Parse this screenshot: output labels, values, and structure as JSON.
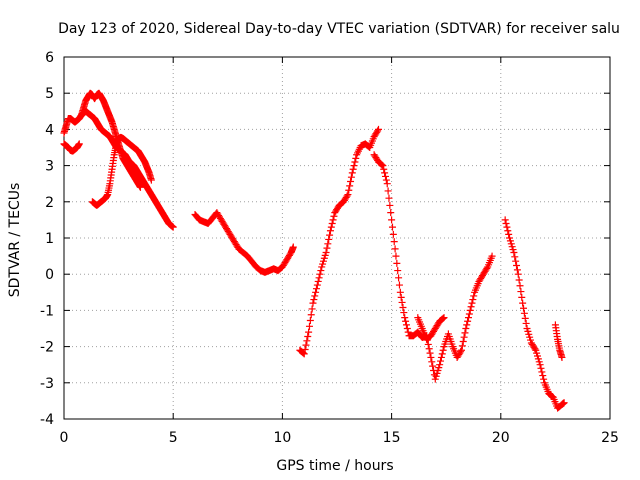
{
  "chart_data": {
    "type": "scatter",
    "title": "Day 123 of 2020, Sidereal Day-to-day VTEC variation (SDTVAR) for receiver salu",
    "xlabel": "GPS time / hours",
    "ylabel": "SDTVAR / TECUs",
    "xlim": [
      0,
      25
    ],
    "ylim": [
      -4,
      6
    ],
    "x_ticks": [
      0,
      5,
      10,
      15,
      20,
      25
    ],
    "y_ticks": [
      -4,
      -3,
      -2,
      -1,
      0,
      1,
      2,
      3,
      4,
      5,
      6
    ],
    "x_tick_labels": [
      "0",
      "5",
      "10",
      "15",
      "20",
      "25"
    ],
    "y_tick_labels": [
      "-4",
      "-3",
      "-2",
      "-1",
      "0",
      "1",
      "2",
      "3",
      "4",
      "5",
      "6"
    ],
    "grid": true,
    "marker": "+",
    "marker_color": "#ff0000",
    "series": [
      {
        "name": "trace-1",
        "x": [
          0.0,
          0.1,
          0.2,
          0.3,
          0.4,
          0.5,
          0.6,
          0.7
        ],
        "y": [
          3.6,
          3.55,
          3.5,
          3.42,
          3.4,
          3.45,
          3.5,
          3.6
        ]
      },
      {
        "name": "trace-2",
        "x": [
          0.0,
          0.1,
          0.2,
          0.3,
          0.4,
          0.5,
          0.6,
          0.7,
          0.8,
          0.9,
          1.0,
          1.1,
          1.2,
          1.3,
          1.4,
          1.5,
          1.6,
          1.7,
          1.8,
          1.9,
          2.0,
          2.1,
          2.2,
          2.3,
          2.4,
          2.5,
          2.6,
          2.7,
          2.8,
          2.9,
          3.0,
          3.1,
          3.2,
          3.3,
          3.4,
          3.5
        ],
        "y": [
          3.9,
          4.1,
          4.3,
          4.3,
          4.25,
          4.2,
          4.25,
          4.3,
          4.4,
          4.6,
          4.8,
          4.9,
          5.0,
          4.95,
          4.85,
          4.95,
          5.0,
          4.9,
          4.8,
          4.65,
          4.5,
          4.35,
          4.2,
          4.0,
          3.8,
          3.6,
          3.4,
          3.2,
          3.1,
          3.0,
          2.9,
          2.8,
          2.7,
          2.6,
          2.5,
          2.4
        ]
      },
      {
        "name": "trace-3",
        "x": [
          0.8,
          0.9,
          1.0,
          1.1,
          1.2,
          1.3,
          1.4,
          1.5,
          1.6,
          1.7,
          1.8,
          1.9,
          2.0,
          2.1,
          2.2,
          2.3,
          2.4,
          2.5,
          2.6,
          2.7,
          2.8,
          2.9,
          3.0,
          3.1,
          3.2,
          3.3,
          3.4,
          3.5,
          3.6,
          3.7,
          3.8,
          3.9,
          4.0,
          4.1,
          4.2,
          4.3,
          4.4,
          4.5,
          4.6,
          4.7,
          4.8,
          4.9,
          5.0
        ],
        "y": [
          4.4,
          4.45,
          4.5,
          4.45,
          4.4,
          4.35,
          4.3,
          4.2,
          4.1,
          4.0,
          3.95,
          3.9,
          3.85,
          3.8,
          3.7,
          3.6,
          3.5,
          3.45,
          3.4,
          3.35,
          3.3,
          3.2,
          3.1,
          3.05,
          3.0,
          2.9,
          2.8,
          2.7,
          2.6,
          2.5,
          2.4,
          2.3,
          2.2,
          2.1,
          2.0,
          1.9,
          1.8,
          1.7,
          1.6,
          1.5,
          1.4,
          1.35,
          1.3
        ]
      },
      {
        "name": "trace-4",
        "x": [
          1.3,
          1.4,
          1.5,
          1.6,
          1.7,
          1.8,
          1.9,
          2.0,
          2.1,
          2.2,
          2.3,
          2.4,
          2.5,
          2.6,
          2.7,
          2.8,
          2.9,
          3.0,
          3.1,
          3.2,
          3.3,
          3.4,
          3.5,
          3.6,
          3.7,
          3.8,
          3.9,
          4.0
        ],
        "y": [
          2.0,
          1.95,
          1.9,
          1.95,
          2.0,
          2.05,
          2.1,
          2.2,
          2.5,
          2.9,
          3.3,
          3.6,
          3.75,
          3.78,
          3.75,
          3.7,
          3.65,
          3.6,
          3.55,
          3.5,
          3.45,
          3.4,
          3.3,
          3.2,
          3.1,
          2.95,
          2.8,
          2.6
        ]
      },
      {
        "name": "trace-5",
        "x": [
          6.0,
          6.2,
          6.4,
          6.6,
          6.8,
          7.0,
          7.2,
          7.4,
          7.6,
          7.8,
          8.0,
          8.2,
          8.4,
          8.6,
          8.8,
          9.0,
          9.2,
          9.4,
          9.6,
          9.8,
          10.0,
          10.2,
          10.4,
          10.5
        ],
        "y": [
          1.65,
          1.5,
          1.45,
          1.4,
          1.55,
          1.7,
          1.5,
          1.3,
          1.1,
          0.9,
          0.7,
          0.6,
          0.5,
          0.35,
          0.2,
          0.1,
          0.05,
          0.1,
          0.15,
          0.1,
          0.2,
          0.4,
          0.6,
          0.75
        ]
      },
      {
        "name": "trace-6",
        "x": [
          10.8,
          11.0,
          11.2,
          11.4,
          11.6,
          11.8,
          12.0,
          12.2,
          12.4,
          12.6,
          12.8,
          13.0,
          13.2,
          13.4,
          13.6,
          13.8,
          14.0,
          14.2,
          14.4
        ],
        "y": [
          -2.1,
          -2.2,
          -1.6,
          -0.8,
          -0.3,
          0.2,
          0.6,
          1.2,
          1.7,
          1.9,
          2.0,
          2.2,
          2.8,
          3.3,
          3.55,
          3.6,
          3.5,
          3.8,
          4.0
        ]
      },
      {
        "name": "trace-7",
        "x": [
          14.2,
          14.4,
          14.6,
          14.8,
          15.0,
          15.2,
          15.4,
          15.6,
          15.8,
          16.0,
          16.2,
          16.4,
          16.6,
          16.8,
          17.0,
          17.2,
          17.4,
          17.6,
          17.8,
          18.0,
          18.2,
          18.4,
          18.6,
          18.8,
          19.0,
          19.2,
          19.4,
          19.6
        ],
        "y": [
          3.3,
          3.1,
          3.0,
          2.5,
          1.5,
          0.5,
          -0.5,
          -1.2,
          -1.7,
          -1.7,
          -1.6,
          -1.75,
          -1.7,
          -2.3,
          -2.9,
          -2.5,
          -2.0,
          -1.65,
          -2.0,
          -2.3,
          -2.1,
          -1.5,
          -1.0,
          -0.5,
          -0.2,
          0.0,
          0.2,
          0.5
        ]
      },
      {
        "name": "trace-8",
        "x": [
          16.2,
          16.4,
          16.6,
          16.8,
          17.0,
          17.2,
          17.4
        ],
        "y": [
          -1.2,
          -1.5,
          -1.8,
          -1.7,
          -1.5,
          -1.3,
          -1.2
        ]
      },
      {
        "name": "trace-9",
        "x": [
          20.2,
          20.4,
          20.6,
          20.8,
          21.0,
          21.2,
          21.4,
          21.6,
          21.8,
          22.0,
          22.2,
          22.4,
          22.6,
          22.8,
          22.9
        ],
        "y": [
          1.5,
          1.0,
          0.6,
          0.0,
          -0.8,
          -1.5,
          -1.9,
          -2.1,
          -2.5,
          -3.0,
          -3.3,
          -3.4,
          -3.7,
          -3.6,
          -3.55
        ]
      },
      {
        "name": "trace-10",
        "x": [
          22.5,
          22.6,
          22.7,
          22.8
        ],
        "y": [
          -1.4,
          -1.8,
          -2.1,
          -2.3
        ]
      }
    ]
  }
}
